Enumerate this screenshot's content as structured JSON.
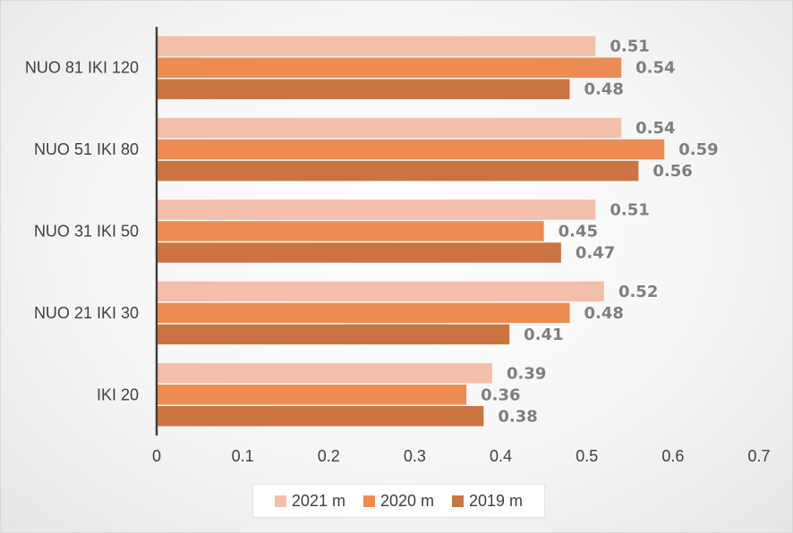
{
  "chart_data": {
    "type": "bar",
    "orientation": "horizontal",
    "categories": [
      "NUO 81 IKI 120",
      "NUO 51 IKI 80",
      "NUO 31 IKI 50",
      "NUO 21 IKI 30",
      "IKI 20"
    ],
    "series": [
      {
        "name": "2021 m",
        "color": "#f4bfaa",
        "values": [
          0.51,
          0.54,
          0.51,
          0.52,
          0.39
        ]
      },
      {
        "name": "2020 m",
        "color": "#ec8c52",
        "values": [
          0.54,
          0.59,
          0.45,
          0.48,
          0.36
        ]
      },
      {
        "name": "2019 m",
        "color": "#cb7441",
        "values": [
          0.48,
          0.56,
          0.47,
          0.41,
          0.38
        ]
      }
    ],
    "data_labels": [
      [
        "0.51",
        "0.54",
        "0.51",
        "0.52",
        "0.39"
      ],
      [
        "0.54",
        "0.59",
        "0.45",
        "0.48",
        "0.36"
      ],
      [
        "0.48",
        "0.56",
        "0.47",
        "0.41",
        "0.38"
      ]
    ],
    "x_ticks": [
      "0",
      "0.1",
      "0.2",
      "0.3",
      "0.4",
      "0.5",
      "0.6",
      "0.7"
    ],
    "xlim": [
      0,
      0.7
    ],
    "grid": false,
    "legend_position": "bottom",
    "data_label_color": "#7f7f7f",
    "axis_line_color": "#404040"
  }
}
